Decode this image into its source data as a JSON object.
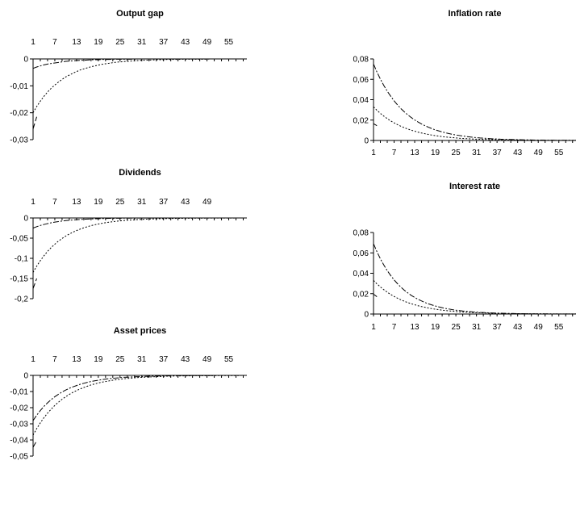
{
  "chart_data": [
    {
      "type": "line",
      "title": "Output gap",
      "xlabel": "",
      "ylabel": "",
      "x_ticks": [
        "1",
        "7",
        "13",
        "19",
        "25",
        "31",
        "37",
        "43",
        "49",
        "55"
      ],
      "x_range": [
        1,
        60
      ],
      "y_ticks": [
        "0",
        "-0,01",
        "-0,02",
        "-0,03"
      ],
      "ylim": [
        -0.03,
        0
      ],
      "grid": false,
      "x_axis_position": "top",
      "series": [
        {
          "style": "dotted",
          "values": [
            -0.02,
            -0.0177,
            -0.0157,
            -0.0139,
            -0.0123,
            -0.0109,
            -0.0097,
            -0.0086,
            -0.0076,
            -0.0067,
            -0.006,
            -0.0053,
            -0.0047,
            -0.0041,
            -0.0037,
            -0.0033,
            -0.0029,
            -0.0026,
            -0.0023,
            -0.002,
            -0.0018,
            -0.0016,
            -0.0014,
            -0.0012,
            -0.0011,
            -0.001,
            -0.0009,
            -0.0008,
            -0.0007,
            -0.0006,
            -0.0005,
            -0.0005,
            -0.0004,
            -0.0004,
            -0.0003,
            -0.0003,
            -0.0003,
            -0.0002,
            -0.0002,
            -0.0002,
            -0.0002,
            -0.0001,
            -0.0001,
            -0.0001,
            -0.0001,
            -0.0001,
            -0.0001,
            -0.0001,
            -0.0001,
            -0.0,
            -0.0,
            -0.0,
            -0.0,
            -0.0,
            -0.0,
            -0.0,
            -0.0,
            -0.0,
            -0.0,
            -0.0
          ]
        },
        {
          "style": "dash-dot",
          "values": [
            -0.0035,
            -0.003,
            -0.0026,
            -0.0022,
            -0.0019,
            -0.0017,
            -0.0015,
            -0.0013,
            -0.0011,
            -0.0009,
            -0.0008,
            -0.0007,
            -0.0006,
            -0.0005,
            -0.0005,
            -0.0004,
            -0.0003,
            -0.0003,
            -0.0003,
            -0.0002,
            -0.0002,
            -0.0002,
            -0.0001,
            -0.0001,
            -0.0001,
            -0.0001,
            -0.0001,
            -0.0001,
            -0.0001,
            -0.0,
            -0.0,
            -0.0,
            -0.0,
            -0.0,
            -0.0,
            -0.0,
            -0.0,
            -0.0,
            -0.0,
            -0.0,
            -0.0,
            -0.0,
            -0.0,
            -0.0,
            -0.0,
            -0.0,
            -0.0,
            -0.0,
            -0.0,
            -0.0,
            -0.0,
            -0.0,
            -0.0,
            -0.0,
            -0.0,
            -0.0,
            -0.0,
            -0.0,
            -0.0,
            -0.0
          ]
        },
        {
          "style": "dashed",
          "values": [
            -0.026,
            -0.0215
          ]
        }
      ]
    },
    {
      "type": "line",
      "title": "Dividends",
      "xlabel": "",
      "ylabel": "",
      "x_ticks": [
        "1",
        "7",
        "13",
        "19",
        "25",
        "31",
        "37",
        "43",
        "49"
      ],
      "x_range": [
        1,
        60
      ],
      "y_ticks": [
        "0",
        "-0,05",
        "-0,1",
        "-0,15",
        "-0,2"
      ],
      "ylim": [
        -0.2,
        0
      ],
      "grid": false,
      "x_axis_position": "top",
      "series": [
        {
          "style": "dotted",
          "values": [
            -0.135,
            -0.1195,
            -0.1058,
            -0.0936,
            -0.0828,
            -0.0733,
            -0.0649,
            -0.0574,
            -0.0508,
            -0.045,
            -0.0398,
            -0.0352,
            -0.0312,
            -0.0276,
            -0.0244,
            -0.0216,
            -0.0191,
            -0.0169,
            -0.015,
            -0.0133,
            -0.0117,
            -0.0104,
            -0.0092,
            -0.0081,
            -0.0072,
            -0.0064,
            -0.0056,
            -0.005,
            -0.0044,
            -0.0039,
            -0.0035,
            -0.0031,
            -0.0027,
            -0.0024,
            -0.0021,
            -0.0019,
            -0.0017,
            -0.0015,
            -0.0013,
            -0.0012,
            -0.001,
            -0.0009,
            -0.0008,
            -0.0007,
            -0.0006,
            -0.0006,
            -0.0005,
            -0.0004,
            -0.0004,
            -0.0003,
            -0.0003,
            -0.0003,
            -0.0002,
            -0.0002,
            -0.0002,
            -0.0002,
            -0.0001,
            -0.0001,
            -0.0001,
            -0.0001
          ]
        },
        {
          "style": "dash-dot",
          "values": [
            -0.025,
            -0.0216,
            -0.0186,
            -0.0161,
            -0.0139,
            -0.012,
            -0.0103,
            -0.0089,
            -0.0077,
            -0.0066,
            -0.0057,
            -0.0049,
            -0.0043,
            -0.0037,
            -0.0032,
            -0.0027,
            -0.0024,
            -0.002,
            -0.0018,
            -0.0015,
            -0.0013,
            -0.0011,
            -0.001,
            -0.0008,
            -0.0007,
            -0.0006,
            -0.0005,
            -0.0005,
            -0.0004,
            -0.0003,
            -0.0003,
            -0.0003,
            -0.0002,
            -0.0002,
            -0.0002,
            -0.0001,
            -0.0001,
            -0.0001,
            -0.0001,
            -0.0001,
            -0.0001,
            -0.0001,
            -0.0,
            -0.0,
            -0.0,
            -0.0,
            -0.0,
            -0.0,
            -0.0,
            -0.0,
            -0.0,
            -0.0,
            -0.0,
            -0.0,
            -0.0,
            -0.0,
            -0.0,
            -0.0,
            -0.0,
            -0.0
          ]
        },
        {
          "style": "dashed",
          "values": [
            -0.175,
            -0.15
          ]
        }
      ]
    },
    {
      "type": "line",
      "title": "Asset prices",
      "xlabel": "",
      "ylabel": "",
      "x_ticks": [
        "1",
        "7",
        "13",
        "19",
        "25",
        "31",
        "37",
        "43",
        "49",
        "55"
      ],
      "x_range": [
        1,
        60
      ],
      "y_ticks": [
        "0",
        "-0,01",
        "-0,02",
        "-0,03",
        "-0,04",
        "-0,05"
      ],
      "ylim": [
        -0.05,
        0
      ],
      "grid": false,
      "x_axis_position": "top",
      "series": [
        {
          "style": "dotted",
          "values": [
            -0.037,
            -0.033,
            -0.0294,
            -0.0262,
            -0.0234,
            -0.0209,
            -0.0186,
            -0.0166,
            -0.0148,
            -0.0132,
            -0.0118,
            -0.0105,
            -0.0094,
            -0.0084,
            -0.0075,
            -0.0067,
            -0.0059,
            -0.0053,
            -0.0047,
            -0.0042,
            -0.0038,
            -0.0034,
            -0.003,
            -0.0027,
            -0.0024,
            -0.0021,
            -0.0019,
            -0.0017,
            -0.0015,
            -0.0013,
            -0.0012,
            -0.0011,
            -0.001,
            -0.0009,
            -0.0008,
            -0.0007,
            -0.0006,
            -0.0005,
            -0.0005,
            -0.0004,
            -0.0004,
            -0.0003,
            -0.0003,
            -0.0003,
            -0.0002,
            -0.0002,
            -0.0002,
            -0.0002,
            -0.0002,
            -0.0001,
            -0.0001,
            -0.0001,
            -0.0001,
            -0.0001,
            -0.0001,
            -0.0001,
            -0.0001,
            -0.0001,
            -0.0,
            -0.0
          ]
        },
        {
          "style": "dash-dot",
          "values": [
            -0.028,
            -0.0247,
            -0.0218,
            -0.0192,
            -0.017,
            -0.015,
            -0.0132,
            -0.0117,
            -0.0103,
            -0.0091,
            -0.008,
            -0.0071,
            -0.0063,
            -0.0055,
            -0.0049,
            -0.0043,
            -0.0038,
            -0.0034,
            -0.003,
            -0.0026,
            -0.0023,
            -0.002,
            -0.0018,
            -0.0016,
            -0.0014,
            -0.0012,
            -0.0011,
            -0.001,
            -0.0009,
            -0.0008,
            -0.0007,
            -0.0006,
            -0.0005,
            -0.0005,
            -0.0004,
            -0.0004,
            -0.0003,
            -0.0003,
            -0.0003,
            -0.0002,
            -0.0002,
            -0.0002,
            -0.0002,
            -0.0001,
            -0.0001,
            -0.0001,
            -0.0001,
            -0.0001,
            -0.0001,
            -0.0001,
            -0.0001,
            -0.0,
            -0.0,
            -0.0,
            -0.0,
            -0.0,
            -0.0,
            -0.0,
            -0.0,
            -0.0
          ]
        },
        {
          "style": "dashed",
          "values": [
            -0.0445,
            -0.0405
          ]
        }
      ]
    },
    {
      "type": "line",
      "title": "Inflation rate",
      "xlabel": "",
      "ylabel": "",
      "x_ticks": [
        "1",
        "7",
        "13",
        "19",
        "25",
        "31",
        "37",
        "43",
        "49",
        "55"
      ],
      "x_range": [
        1,
        60
      ],
      "y_ticks": [
        "0,08",
        "0,06",
        "0,04",
        "0,02",
        "0"
      ],
      "ylim": [
        0,
        0.08
      ],
      "grid": false,
      "x_axis_position": "bottom",
      "series": [
        {
          "style": "dash-dot",
          "values": [
            0.075,
            0.0672,
            0.0602,
            0.054,
            0.0484,
            0.0434,
            0.0389,
            0.0348,
            0.0312,
            0.028,
            0.0251,
            0.0225,
            0.0201,
            0.0181,
            0.0162,
            0.0145,
            0.013,
            0.0116,
            0.0104,
            0.0094,
            0.0084,
            0.0075,
            0.0067,
            0.006,
            0.0054,
            0.0049,
            0.0044,
            0.0039,
            0.0035,
            0.0031,
            0.0028,
            0.0025,
            0.0023,
            0.002,
            0.0018,
            0.0016,
            0.0015,
            0.0013,
            0.0012,
            0.0011,
            0.001,
            0.0009,
            0.0008,
            0.0007,
            0.0006,
            0.0006,
            0.0005,
            0.0004,
            0.0004,
            0.0004,
            0.0003,
            0.0003,
            0.0003,
            0.0002,
            0.0002,
            0.0002,
            0.0002,
            0.0002,
            0.0001,
            0.0001
          ]
        },
        {
          "style": "dotted",
          "values": [
            0.033,
            0.0296,
            0.0266,
            0.0239,
            0.0214,
            0.0192,
            0.0173,
            0.0155,
            0.0139,
            0.0125,
            0.0112,
            0.0101,
            0.0091,
            0.0081,
            0.0073,
            0.0066,
            0.0059,
            0.0053,
            0.0047,
            0.0043,
            0.0038,
            0.0034,
            0.0031,
            0.0028,
            0.0025,
            0.0022,
            0.002,
            0.0018,
            0.0016,
            0.0014,
            0.0013,
            0.0012,
            0.0011,
            0.001,
            0.0008,
            0.0008,
            0.0007,
            0.0006,
            0.0006,
            0.0005,
            0.0004,
            0.0004,
            0.0004,
            0.0003,
            0.0003,
            0.0003,
            0.0002,
            0.0002,
            0.0002,
            0.0002,
            0.0001,
            0.0001,
            0.0001,
            0.0001,
            0.0001,
            0.0001,
            0.0001,
            0.0001,
            0.0001,
            0.0001
          ]
        },
        {
          "style": "dashed",
          "values": [
            0.0165,
            0.0145
          ]
        }
      ]
    },
    {
      "type": "line",
      "title": "Interest rate",
      "xlabel": "",
      "ylabel": "",
      "x_ticks": [
        "1",
        "7",
        "13",
        "19",
        "25",
        "31",
        "37",
        "43",
        "49",
        "55"
      ],
      "x_range": [
        1,
        60
      ],
      "y_ticks": [
        "0,08",
        "0,06",
        "0,04",
        "0,02",
        "0"
      ],
      "ylim": [
        0,
        0.08
      ],
      "grid": false,
      "x_axis_position": "bottom",
      "series": [
        {
          "style": "dash-dot",
          "values": [
            0.069,
            0.0612,
            0.0542,
            0.0481,
            0.0426,
            0.0378,
            0.0335,
            0.0297,
            0.0263,
            0.0233,
            0.0207,
            0.0183,
            0.0163,
            0.0144,
            0.0128,
            0.0113,
            0.01,
            0.0089,
            0.0079,
            0.007,
            0.0062,
            0.0055,
            0.0049,
            0.0043,
            0.0038,
            0.0034,
            0.003,
            0.0027,
            0.0024,
            0.0021,
            0.0019,
            0.0016,
            0.0015,
            0.0013,
            0.0011,
            0.001,
            0.0009,
            0.0008,
            0.0007,
            0.0006,
            0.0006,
            0.0005,
            0.0004,
            0.0004,
            0.0003,
            0.0003,
            0.0003,
            0.0002,
            0.0002,
            0.0002,
            0.0002,
            0.0002,
            0.0001,
            0.0001,
            0.0001,
            0.0001,
            0.0001,
            0.0001,
            0.0001,
            0.0001
          ]
        },
        {
          "style": "dotted",
          "values": [
            0.033,
            0.0296,
            0.0266,
            0.0239,
            0.0214,
            0.0192,
            0.0173,
            0.0155,
            0.0139,
            0.0125,
            0.0112,
            0.0101,
            0.0091,
            0.0081,
            0.0073,
            0.0066,
            0.0059,
            0.0053,
            0.0047,
            0.0043,
            0.0038,
            0.0034,
            0.0031,
            0.0028,
            0.0025,
            0.0022,
            0.002,
            0.0018,
            0.0016,
            0.0014,
            0.0013,
            0.0012,
            0.0011,
            0.001,
            0.0008,
            0.0008,
            0.0007,
            0.0006,
            0.0006,
            0.0005,
            0.0004,
            0.0004,
            0.0004,
            0.0003,
            0.0003,
            0.0003,
            0.0002,
            0.0002,
            0.0002,
            0.0002,
            0.0001,
            0.0001,
            0.0001,
            0.0001,
            0.0001,
            0.0001,
            0.0001,
            0.0001,
            0.0001,
            0.0001
          ]
        },
        {
          "style": "dashed",
          "values": [
            0.0195,
            0.017
          ]
        }
      ]
    }
  ]
}
